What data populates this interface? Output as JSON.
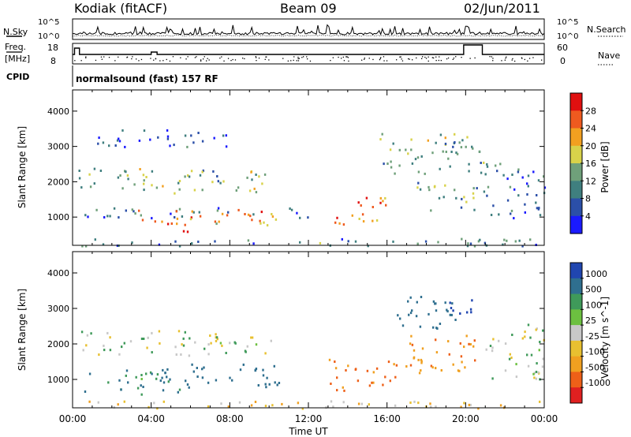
{
  "header": {
    "station": "Kodiak (fitACF)",
    "beam": "Beam 09",
    "date": "02/Jun/2011"
  },
  "top_panels": {
    "nsky_label": "N.Sky",
    "nsearch_label": "N.Search",
    "noise_ticks": [
      "10^5",
      "10^0"
    ],
    "freq_label_line1": "Freq.",
    "freq_label_line2": "[MHz]",
    "freq_ticks": [
      "18",
      "8"
    ],
    "nave_label": "Nave",
    "nave_ticks": [
      "60",
      "0"
    ],
    "cpid_label": "CPID",
    "cpid_text": "normalsound (fast) 157 RF"
  },
  "colors": {
    "power_scale": [
      "#1a1aff",
      "#2b4fa8",
      "#3f7f7f",
      "#6fa07a",
      "#d8d24a",
      "#f2a020",
      "#ef5a1f",
      "#e01010"
    ],
    "velocity_scale": [
      "#2046b0",
      "#2f6f8f",
      "#3f9a5a",
      "#6cc040",
      "#c8c8c8",
      "#e8c030",
      "#f0a020",
      "#ee6018",
      "#e02020"
    ]
  },
  "chart_data": [
    {
      "type": "heatmap",
      "title": "",
      "xlabel": "",
      "ylabel": "Slant Range [km]",
      "x_ticks": [
        "00:00",
        "04:00",
        "08:00",
        "12:00",
        "16:00",
        "20:00",
        "00:00"
      ],
      "y_ticks": [
        1000,
        2000,
        3000,
        4000
      ],
      "ylim": [
        200,
        4600
      ],
      "colorbar": {
        "label": "Power [dB]",
        "ticks": [
          4,
          8,
          12,
          16,
          20,
          24,
          28
        ],
        "range": [
          0,
          32
        ]
      },
      "echo_regions": [
        {
          "t0": 0.3,
          "t1": 10.2,
          "r0": 1700,
          "r1": 2400,
          "value": 14
        },
        {
          "t0": 0.3,
          "t1": 12.0,
          "r0": 1000,
          "r1": 1300,
          "value": 8
        },
        {
          "t0": 2.5,
          "t1": 10.5,
          "r0": 800,
          "r1": 1250,
          "value": 22
        },
        {
          "t0": 4.0,
          "t1": 6.0,
          "r0": 600,
          "r1": 900,
          "value": 27
        },
        {
          "t0": 13.2,
          "t1": 16.0,
          "r0": 800,
          "r1": 1600,
          "value": 26
        },
        {
          "t0": 17.5,
          "t1": 21.0,
          "r0": 1200,
          "r1": 2000,
          "value": 12
        },
        {
          "t0": 15.5,
          "t1": 21.0,
          "r0": 2200,
          "r1": 3400,
          "value": 14
        },
        {
          "t0": 21.0,
          "t1": 24.0,
          "r0": 1000,
          "r1": 2600,
          "value": 8
        },
        {
          "t0": 1.2,
          "t1": 8.2,
          "r0": 3000,
          "r1": 3500,
          "value": 6
        },
        {
          "t0": 0.3,
          "t1": 24.0,
          "r0": 200,
          "r1": 420,
          "value": 10
        }
      ]
    },
    {
      "type": "heatmap",
      "title": "",
      "xlabel": "Time UT",
      "ylabel": "Slant Range [km]",
      "x_ticks": [
        "00:00",
        "04:00",
        "08:00",
        "12:00",
        "16:00",
        "20:00",
        "00:00"
      ],
      "y_ticks": [
        1000,
        2000,
        3000,
        4000
      ],
      "ylim": [
        200,
        4600
      ],
      "colorbar": {
        "label": "Velocity [m s^-1]",
        "ticks": [
          1000,
          500,
          100,
          25,
          -25,
          -100,
          -500,
          -1000
        ]
      },
      "echo_regions": [
        {
          "t0": 0.3,
          "t1": 10.2,
          "r0": 1700,
          "r1": 2400,
          "value": 0
        },
        {
          "t0": 0.5,
          "t1": 5.5,
          "r0": 600,
          "r1": 1300,
          "value": 120
        },
        {
          "t0": 4.5,
          "t1": 10.5,
          "r0": 800,
          "r1": 1500,
          "value": 300
        },
        {
          "t0": 13.0,
          "t1": 16.5,
          "r0": 700,
          "r1": 1600,
          "value": -300
        },
        {
          "t0": 16.5,
          "t1": 20.5,
          "r0": 1200,
          "r1": 2300,
          "value": -200
        },
        {
          "t0": 16.5,
          "t1": 19.5,
          "r0": 2300,
          "r1": 3400,
          "value": 300
        },
        {
          "t0": 19.0,
          "t1": 20.5,
          "r0": 2700,
          "r1": 3300,
          "value": 900
        },
        {
          "t0": 21.0,
          "t1": 24.0,
          "r0": 1000,
          "r1": 2600,
          "value": 0
        },
        {
          "t0": 0.3,
          "t1": 24.0,
          "r0": 200,
          "r1": 420,
          "value": -60
        }
      ]
    }
  ]
}
